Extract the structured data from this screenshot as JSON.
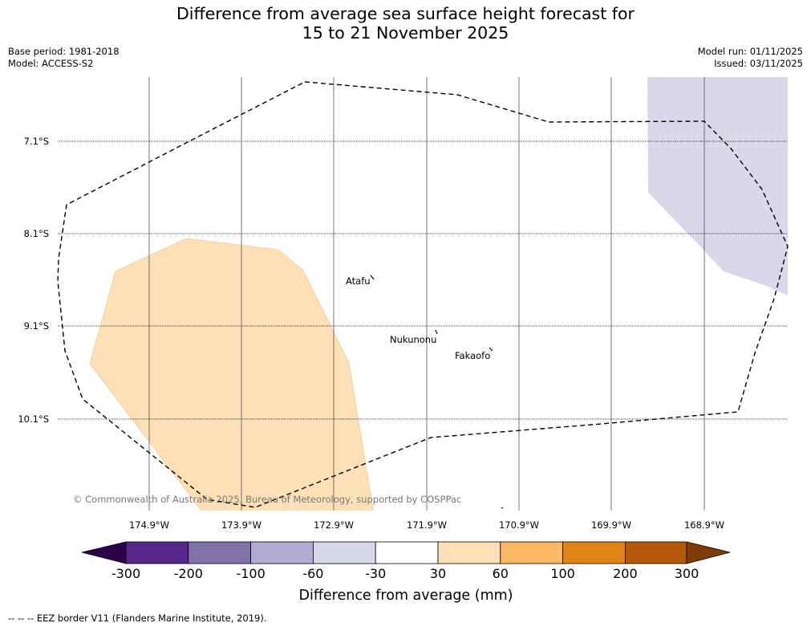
{
  "title": {
    "line1": "Difference from average sea surface height forecast for",
    "line2": "15 to 21 November 2025"
  },
  "meta": {
    "base_period": "Base period: 1981-2018",
    "model": "Model: ACCESS-S2",
    "model_run": "Model run: 01/11/2025",
    "issued": "Issued: 03/11/2025"
  },
  "map": {
    "lat_labels": [
      "7.1°S",
      "8.1°S",
      "9.1°S",
      "10.1°S"
    ],
    "lon_labels": [
      "174.9°W",
      "173.9°W",
      "172.9°W",
      "171.9°W",
      "170.9°W",
      "169.9°W",
      "168.9°W"
    ],
    "places": [
      {
        "name": "Atafu"
      },
      {
        "name": "Nukunonu"
      },
      {
        "name": "Fakaofo"
      }
    ],
    "copyright": "© Commonwealth of Australia 2025, Bureau of Meteorology, supported by COSPPac",
    "fill_colors": {
      "positive_30_60": "#fde0b5",
      "negative_30_60": "#d8d8ea"
    }
  },
  "colorbar": {
    "label": "Difference from average (mm)",
    "ticks": [
      "-300",
      "-200",
      "-100",
      "-60",
      "-30",
      "30",
      "60",
      "100",
      "200",
      "300"
    ],
    "colors": [
      "#2d004b",
      "#542788",
      "#8073ac",
      "#b2abd2",
      "#d8daeb",
      "#ffffff",
      "#fee0b6",
      "#fdb863",
      "#e08214",
      "#b35806",
      "#7f3b08"
    ]
  },
  "footer": {
    "legend": "--  --  -- EEZ border V11 (Flanders Marine Institute, 2019)."
  }
}
